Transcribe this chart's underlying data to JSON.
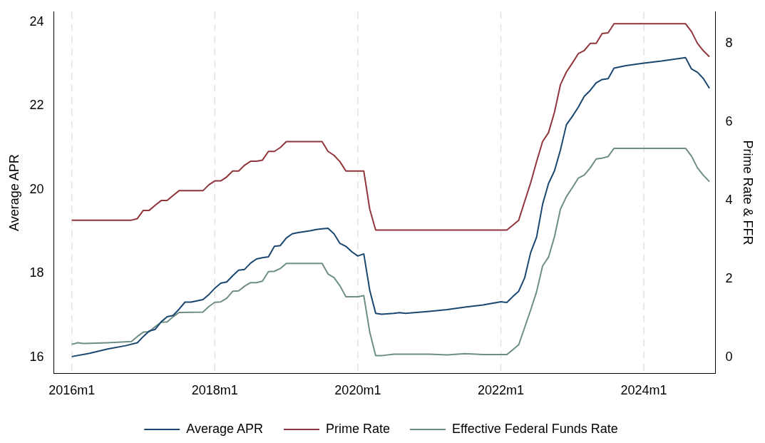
{
  "chart_data": {
    "type": "line",
    "ylabel": "Average APR",
    "y2label": "Prime Rate & FFR",
    "xlim": [
      "2015-10",
      "2025-01"
    ],
    "xticks": [
      {
        "value": "2016-01",
        "label": "2016m1"
      },
      {
        "value": "2018-01",
        "label": "2018m1"
      },
      {
        "value": "2020-01",
        "label": "2020m1"
      },
      {
        "value": "2022-01",
        "label": "2022m1"
      },
      {
        "value": "2024-01",
        "label": "2024m1"
      }
    ],
    "ylim": [
      15.62,
      24.24
    ],
    "yticks": [
      16,
      18,
      20,
      22,
      24
    ],
    "y2lim": [
      -0.4,
      8.8
    ],
    "y2ticks": [
      0,
      2,
      4,
      6,
      8
    ],
    "grid": "x",
    "legend": "bottom",
    "marker": "none",
    "line_style": "solid",
    "series": [
      {
        "name": "Average APR",
        "color": "#1a476f",
        "x": [
          "2016-01",
          "2016-04",
          "2016-07",
          "2016-10",
          "2016-12",
          "2017-01",
          "2017-02",
          "2017-03",
          "2017-04",
          "2017-05",
          "2017-06",
          "2017-07",
          "2017-08",
          "2017-09",
          "2017-10",
          "2017-11",
          "2017-12",
          "2018-01",
          "2018-02",
          "2018-03",
          "2018-04",
          "2018-05",
          "2018-06",
          "2018-07",
          "2018-08",
          "2018-09",
          "2018-10",
          "2018-11",
          "2018-12",
          "2019-01",
          "2019-02",
          "2019-03",
          "2019-04",
          "2019-05",
          "2019-06",
          "2019-07",
          "2019-08",
          "2019-09",
          "2019-10",
          "2019-11",
          "2019-12",
          "2020-01",
          "2020-02",
          "2020-03",
          "2020-04",
          "2020-05",
          "2020-07",
          "2020-08",
          "2020-09",
          "2021-01",
          "2021-04",
          "2021-07",
          "2021-10",
          "2022-01",
          "2022-02",
          "2022-03",
          "2022-04",
          "2022-05",
          "2022-06",
          "2022-07",
          "2022-08",
          "2022-09",
          "2022-10",
          "2022-11",
          "2022-12",
          "2023-01",
          "2023-02",
          "2023-03",
          "2023-04",
          "2023-05",
          "2023-06",
          "2023-07",
          "2023-08",
          "2023-10",
          "2024-01",
          "2024-04",
          "2024-08",
          "2024-09",
          "2024-10",
          "2024-11",
          "2024-12"
        ],
        "values": [
          16.02,
          16.1,
          16.2,
          16.28,
          16.35,
          16.5,
          16.63,
          16.67,
          16.85,
          16.97,
          17.0,
          17.15,
          17.32,
          17.32,
          17.35,
          17.38,
          17.5,
          17.65,
          17.77,
          17.8,
          17.95,
          18.08,
          18.1,
          18.25,
          18.35,
          18.38,
          18.4,
          18.65,
          18.67,
          18.85,
          18.95,
          18.98,
          19.0,
          19.02,
          19.05,
          19.07,
          19.08,
          18.95,
          18.72,
          18.65,
          18.52,
          18.42,
          18.47,
          17.6,
          17.05,
          17.03,
          17.05,
          17.07,
          17.05,
          17.1,
          17.14,
          17.2,
          17.25,
          17.33,
          17.31,
          17.45,
          17.58,
          17.9,
          18.5,
          18.87,
          19.65,
          20.15,
          20.45,
          20.95,
          21.55,
          21.75,
          21.97,
          22.23,
          22.37,
          22.55,
          22.63,
          22.65,
          22.9,
          22.96,
          23.02,
          23.07,
          23.15,
          22.88,
          22.8,
          22.65,
          22.42
        ]
      },
      {
        "name": "Prime Rate",
        "color": "#90353b",
        "axis": "y2",
        "x": [
          "2016-01",
          "2016-11",
          "2016-12",
          "2017-01",
          "2017-02",
          "2017-03",
          "2017-04",
          "2017-05",
          "2017-06",
          "2017-07",
          "2017-11",
          "2017-12",
          "2018-01",
          "2018-02",
          "2018-03",
          "2018-04",
          "2018-05",
          "2018-06",
          "2018-07",
          "2018-08",
          "2018-09",
          "2018-10",
          "2018-11",
          "2018-12",
          "2019-01",
          "2019-07",
          "2019-08",
          "2019-09",
          "2019-10",
          "2019-11",
          "2020-02",
          "2020-03",
          "2020-04",
          "2022-02",
          "2022-03",
          "2022-04",
          "2022-05",
          "2022-06",
          "2022-07",
          "2022-08",
          "2022-09",
          "2022-10",
          "2022-11",
          "2022-12",
          "2023-01",
          "2023-02",
          "2023-03",
          "2023-04",
          "2023-05",
          "2023-06",
          "2023-07",
          "2023-08",
          "2024-08",
          "2024-09",
          "2024-10",
          "2024-11",
          "2024-12"
        ],
        "values": [
          3.5,
          3.5,
          3.54,
          3.75,
          3.75,
          3.88,
          4.0,
          4.0,
          4.13,
          4.25,
          4.25,
          4.4,
          4.5,
          4.5,
          4.6,
          4.75,
          4.75,
          4.9,
          5.0,
          5.0,
          5.03,
          5.25,
          5.25,
          5.35,
          5.5,
          5.5,
          5.25,
          5.15,
          4.99,
          4.75,
          4.75,
          3.78,
          3.25,
          3.25,
          3.37,
          3.5,
          3.98,
          4.45,
          4.99,
          5.5,
          5.73,
          6.25,
          6.95,
          7.27,
          7.5,
          7.74,
          7.82,
          8.0,
          8.0,
          8.25,
          8.27,
          8.5,
          8.5,
          8.3,
          8.0,
          7.81,
          7.66
        ]
      },
      {
        "name": "Effective Federal Funds Rate",
        "color": "#6e8e84",
        "axis": "y2",
        "x": [
          "2016-01",
          "2016-02",
          "2016-03",
          "2016-07",
          "2016-11",
          "2016-12",
          "2017-01",
          "2017-02",
          "2017-03",
          "2017-04",
          "2017-05",
          "2017-06",
          "2017-07",
          "2017-11",
          "2017-12",
          "2018-01",
          "2018-02",
          "2018-03",
          "2018-04",
          "2018-05",
          "2018-06",
          "2018-07",
          "2018-08",
          "2018-09",
          "2018-10",
          "2018-11",
          "2018-12",
          "2019-01",
          "2019-07",
          "2019-08",
          "2019-09",
          "2019-10",
          "2019-11",
          "2020-01",
          "2020-02",
          "2020-03",
          "2020-04",
          "2020-05",
          "2020-07",
          "2020-10",
          "2021-01",
          "2021-04",
          "2021-07",
          "2021-10",
          "2022-02",
          "2022-03",
          "2022-04",
          "2022-05",
          "2022-06",
          "2022-07",
          "2022-08",
          "2022-09",
          "2022-10",
          "2022-11",
          "2022-12",
          "2023-01",
          "2023-02",
          "2023-03",
          "2023-04",
          "2023-05",
          "2023-06",
          "2023-07",
          "2023-08",
          "2024-08",
          "2024-09",
          "2024-10",
          "2024-11",
          "2024-12"
        ],
        "values": [
          0.34,
          0.38,
          0.36,
          0.38,
          0.41,
          0.54,
          0.65,
          0.66,
          0.79,
          0.9,
          0.91,
          1.04,
          1.15,
          1.16,
          1.3,
          1.41,
          1.42,
          1.51,
          1.69,
          1.7,
          1.82,
          1.91,
          1.91,
          1.95,
          2.19,
          2.2,
          2.27,
          2.4,
          2.4,
          2.13,
          2.04,
          1.83,
          1.55,
          1.55,
          1.58,
          0.65,
          0.05,
          0.05,
          0.09,
          0.09,
          0.09,
          0.07,
          0.1,
          0.08,
          0.08,
          0.2,
          0.33,
          0.77,
          1.21,
          1.68,
          2.33,
          2.56,
          3.08,
          3.78,
          4.1,
          4.33,
          4.57,
          4.65,
          4.83,
          5.06,
          5.08,
          5.12,
          5.33,
          5.33,
          5.13,
          4.83,
          4.64,
          4.48
        ]
      }
    ]
  }
}
